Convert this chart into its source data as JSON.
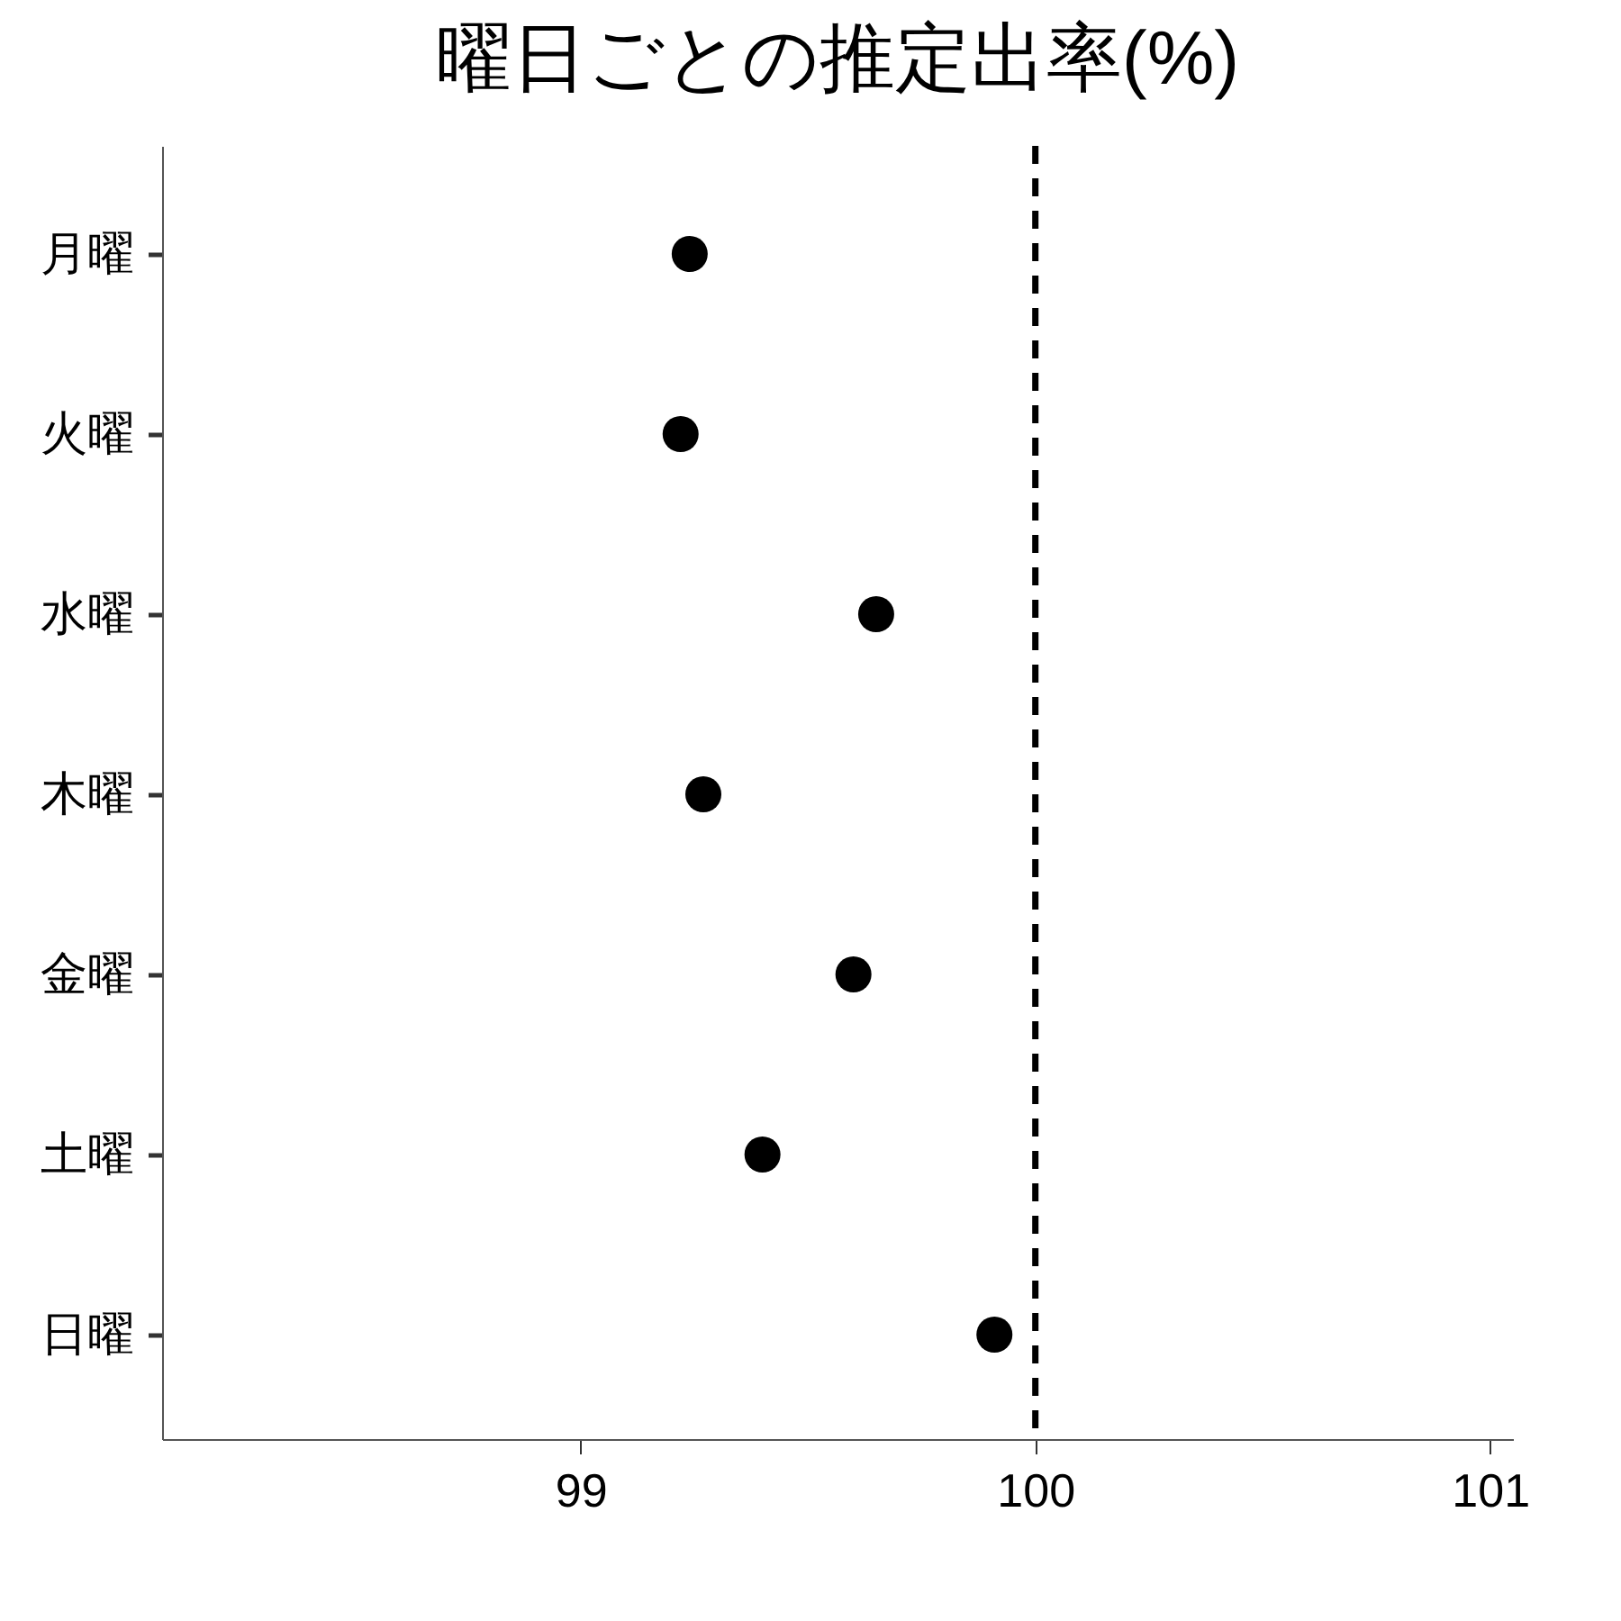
{
  "chart_data": {
    "type": "scatter",
    "title": "曜日ごとの推定出率(%)",
    "categories": [
      "月曜",
      "火曜",
      "水曜",
      "木曜",
      "金曜",
      "土曜",
      "日曜"
    ],
    "series": [
      {
        "color": "#000000",
        "values": [
          99.24,
          99.22,
          99.65,
          99.27,
          99.6,
          99.4,
          99.91
        ]
      }
    ],
    "orientation": "horizontal",
    "xlim": [
      98.08,
      101.05
    ],
    "xticks": [
      99,
      100,
      101
    ],
    "marker": "circle",
    "grid": false,
    "legend": false,
    "ref_lines": [
      {
        "axis": "x",
        "value": 100,
        "line_style": "dashed",
        "color": "#000000"
      }
    ]
  }
}
